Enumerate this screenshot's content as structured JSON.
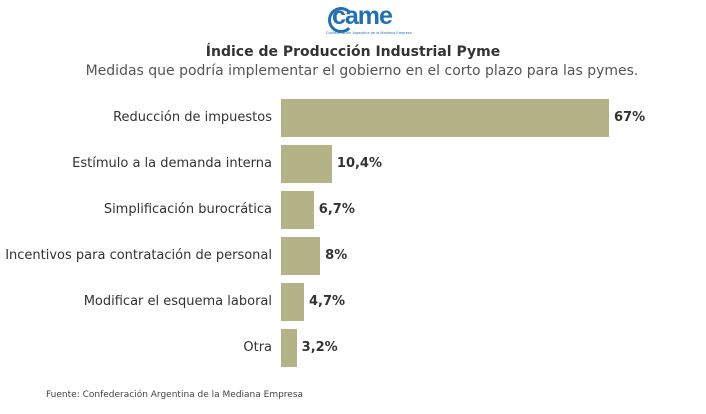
{
  "logo": {
    "text": "came",
    "subtitle": "Confederación Argentina de la Mediana Empresa"
  },
  "chart_data": {
    "type": "bar",
    "orientation": "horizontal",
    "title": "Índice de Producción Industrial Pyme",
    "subtitle": "Medidas que podría implementar el gobierno en el corto plazo para las pymes.",
    "categories": [
      "Reducción de impuestos",
      "Estímulo a la demanda interna",
      "Simplificación burocrática",
      "Incentivos para contratación de personal",
      "Modificar el esquema laboral",
      "Otra"
    ],
    "values": [
      67,
      10.4,
      6.7,
      8,
      4.7,
      3.2
    ],
    "value_labels": [
      "67%",
      "10,4%",
      "6,7%",
      "8%",
      "4,7%",
      "3,2%"
    ],
    "color": "#b3b387",
    "xlim": [
      0,
      67
    ]
  },
  "source": "Fuente: Confederación Argentina de la Mediana Empresa"
}
